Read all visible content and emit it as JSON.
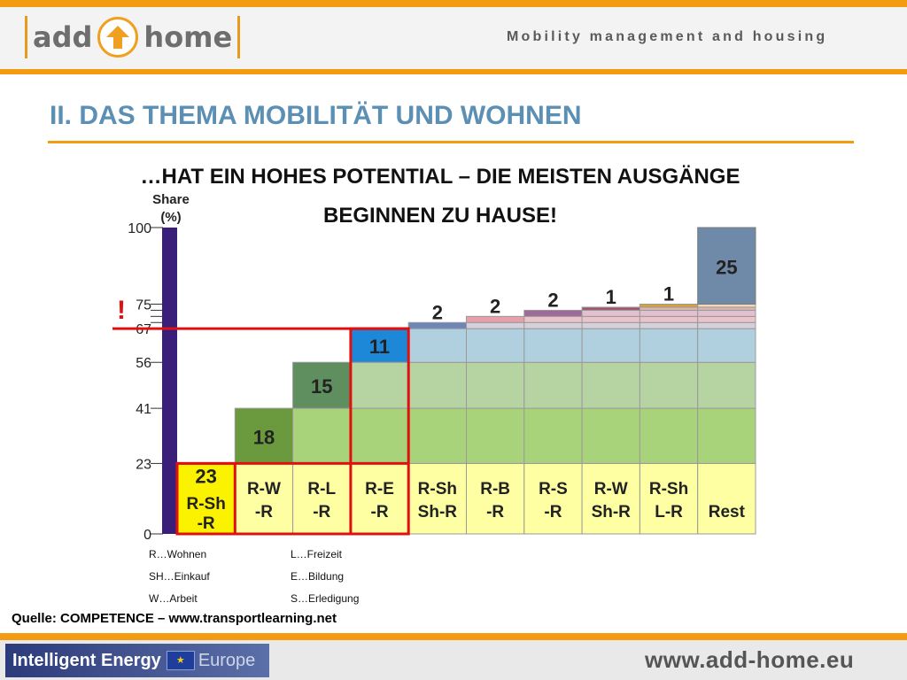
{
  "header": {
    "logo_left": "add",
    "logo_right": "home",
    "tagline": "Mobility management and housing"
  },
  "title": "II. DAS THEMA MOBILITÄT UND WOHNEN",
  "subtitle_line1": "…HAT EIN HOHES POTENTIAL – DIE MEISTEN AUSGÄNGE",
  "subtitle_line2": "BEGINNEN ZU HAUSE!",
  "exclamation": "!",
  "chart_data": {
    "type": "bar",
    "subtype": "stacked-waterfall",
    "ylabel": "Share\n(%)",
    "ylim": [
      0,
      100
    ],
    "y_ticks": [
      "0",
      "23",
      "41",
      "56",
      "67",
      "75",
      "100"
    ],
    "categories": [
      "R-Sh\n-R",
      "R-W\n-R",
      "R-L\n-R",
      "R-E\n-R",
      "R-Sh\nSh-R",
      "R-B\n-R",
      "R-S\n-R",
      "R-W\nSh-R",
      "R-Sh\nL-R",
      "Rest"
    ],
    "values": [
      23,
      18,
      15,
      11,
      2,
      2,
      2,
      1,
      1,
      25
    ],
    "value_labels": [
      "23",
      "18",
      "15",
      "11",
      "2",
      "2",
      "2",
      "1",
      "1",
      "25"
    ],
    "colors": {
      "base": "#fefea2",
      "highlight": "#fbf200",
      "segments": [
        "#fefea2",
        "#6b9a3e",
        "#5f8f5e",
        "#1e88d8",
        "#6d86b8",
        "#e8a0a8",
        "#9d6a9a",
        "#9a5a6a",
        "#d9a040",
        "#6f89a8"
      ],
      "shades": [
        "#fefea2",
        "#a9d37a",
        "#b6d4a2",
        "#b0d0e0",
        "#d6d0dc",
        "#e9c4c8",
        "#e3c0cf",
        "#d9b8b0",
        "#f0d8b8",
        "#6f89a8"
      ],
      "axis_bar": "#3a1f7a",
      "red": "#e01010"
    },
    "highlight_threshold": 67
  },
  "legend_col1": [
    "R…Wohnen",
    "SH…Einkauf",
    "W…Arbeit"
  ],
  "legend_col2": [
    "L…Freizeit",
    "E…Bildung",
    "S…Erledigung"
  ],
  "source": "Quelle: COMPETENCE – www.transportlearning.net",
  "footer": {
    "ie_text": "Intelligent Energy",
    "ie_europe": "Europe",
    "site": "www.add-home.eu"
  }
}
